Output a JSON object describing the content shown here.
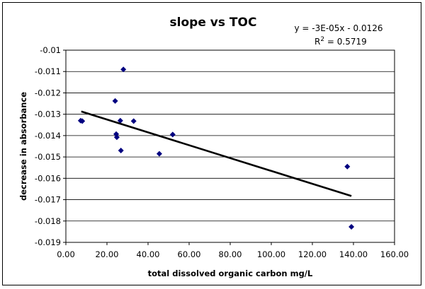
{
  "chart_data": {
    "type": "scatter",
    "title": "slope vs TOC",
    "xlabel": "total dissolved organic carbon  mg/L",
    "ylabel": "decrease in absorbance",
    "trendline": {
      "equation": "y = -3E-05x - 0.0126",
      "r2_prefix": "R",
      "r2_sup": "2",
      "r2_value": " = 0.5719",
      "x_start": 7.5,
      "x_end": 139.0,
      "y_start": -0.01287,
      "y_end": -0.01683
    },
    "xlim": [
      0,
      160
    ],
    "ylim": [
      -0.019,
      -0.01
    ],
    "x_ticks": [
      "0.00",
      "20.00",
      "40.00",
      "60.00",
      "80.00",
      "100.00",
      "120.00",
      "140.00",
      "160.00"
    ],
    "y_ticks": [
      "-0.01",
      "-0.011",
      "-0.012",
      "-0.013",
      "-0.014",
      "-0.015",
      "-0.016",
      "-0.017",
      "-0.018",
      "-0.019"
    ],
    "grid": "horizontal",
    "marker_color": "#000080",
    "series": [
      {
        "points": [
          [
            7.2,
            -0.0133
          ],
          [
            8.0,
            -0.01332
          ],
          [
            24.0,
            -0.01238
          ],
          [
            24.5,
            -0.01393
          ],
          [
            24.8,
            -0.01408
          ],
          [
            26.5,
            -0.0133
          ],
          [
            26.8,
            -0.0147
          ],
          [
            28.0,
            -0.0109
          ],
          [
            33.0,
            -0.01332
          ],
          [
            45.5,
            -0.01485
          ],
          [
            52.0,
            -0.01395
          ],
          [
            137.0,
            -0.01545
          ],
          [
            139.0,
            -0.01827
          ]
        ]
      }
    ]
  }
}
